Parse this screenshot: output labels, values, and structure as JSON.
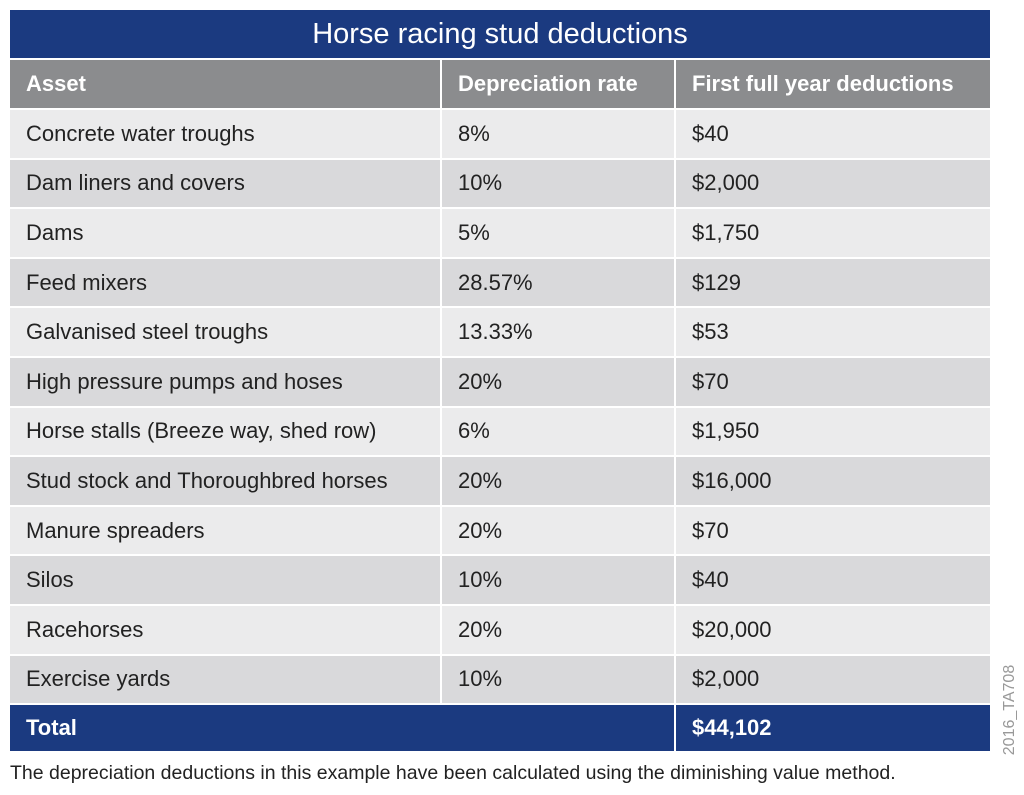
{
  "table": {
    "title": "Horse racing stud deductions",
    "headers": [
      "Asset",
      "Depreciation rate",
      "First full year deductions"
    ],
    "rows": [
      [
        "Concrete water troughs",
        "8%",
        "$40"
      ],
      [
        "Dam liners and covers",
        "10%",
        "$2,000"
      ],
      [
        "Dams",
        "5%",
        "$1,750"
      ],
      [
        "Feed mixers",
        "28.57%",
        "$129"
      ],
      [
        "Galvanised steel troughs",
        "13.33%",
        "$53"
      ],
      [
        "High pressure pumps and hoses",
        "20%",
        "$70"
      ],
      [
        "Horse stalls (Breeze way, shed row)",
        "6%",
        "$1,950"
      ],
      [
        "Stud stock and Thoroughbred horses",
        "20%",
        "$16,000"
      ],
      [
        "Manure spreaders",
        "20%",
        "$70"
      ],
      [
        "Silos",
        "10%",
        "$40"
      ],
      [
        "Racehorses",
        "20%",
        "$20,000"
      ],
      [
        "Exercise yards",
        "10%",
        "$2,000"
      ]
    ],
    "total": {
      "label": "Total",
      "value": "$44,102"
    },
    "footnote": "The depreciation deductions in this example have been calculated using the diminishing value method.",
    "code": "2016_TA708"
  }
}
